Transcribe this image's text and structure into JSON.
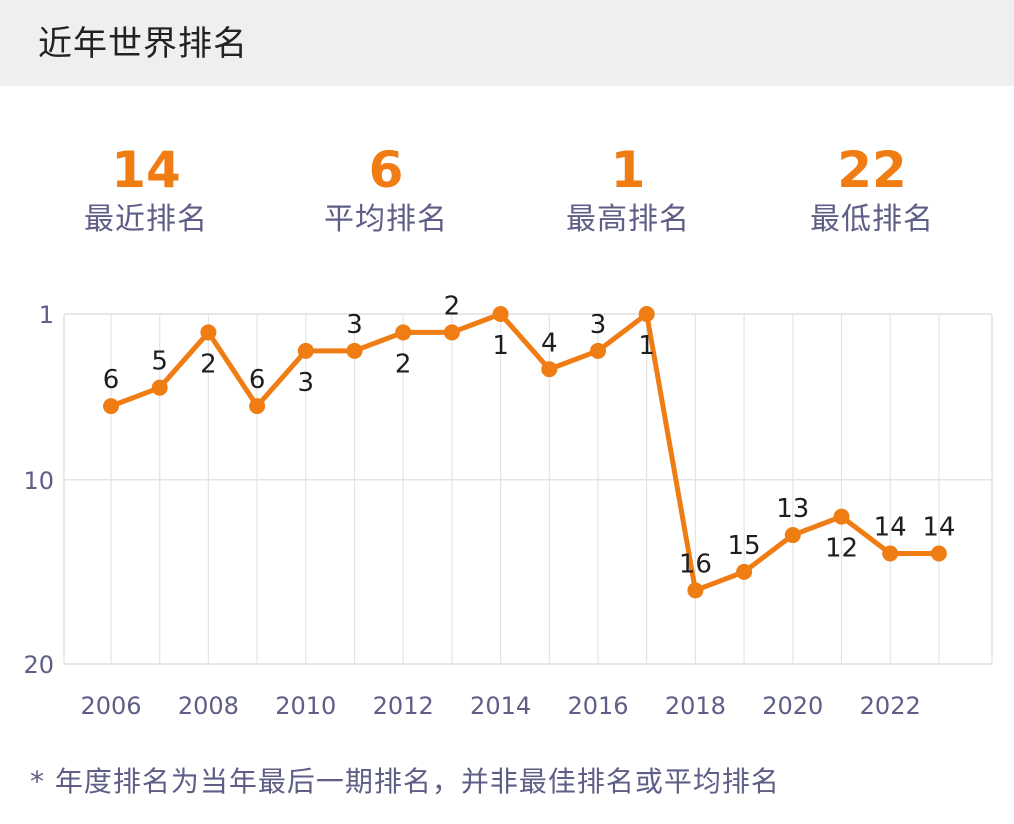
{
  "header": {
    "title": "近年世界排名"
  },
  "stats": [
    {
      "value": "14",
      "label": "最近排名"
    },
    {
      "value": "6",
      "label": "平均排名"
    },
    {
      "value": "1",
      "label": "最高排名"
    },
    {
      "value": "22",
      "label": "最低排名"
    }
  ],
  "footnote": "* 年度排名为当年最后一期排名，并非最佳排名或平均排名",
  "colors": {
    "accent": "#ef7d14",
    "label": "#5e5e86",
    "grid": "#e4e4e8",
    "header_bg": "#eeeff1"
  },
  "chart_data": {
    "type": "line",
    "x": [
      2006,
      2007,
      2008,
      2009,
      2010,
      2011,
      2012,
      2013,
      2014,
      2015,
      2016,
      2017,
      2018,
      2019,
      2020,
      2021,
      2022,
      2023
    ],
    "series": [
      {
        "values": [
          6,
          5,
          2,
          6,
          3,
          3,
          2,
          2,
          1,
          4,
          3,
          1,
          16,
          15,
          13,
          12,
          14,
          14
        ]
      }
    ],
    "ylim": [
      1,
      20
    ],
    "y_inverted": true,
    "yticks": [
      "1",
      "10",
      "20"
    ],
    "xticks": [
      "2006",
      "2008",
      "2010",
      "2012",
      "2014",
      "2016",
      "2018",
      "2020",
      "2022"
    ],
    "grid": true
  }
}
